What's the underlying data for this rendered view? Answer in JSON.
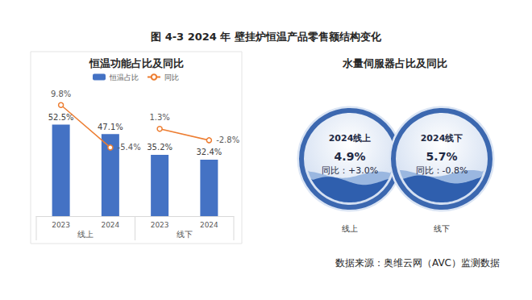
{
  "title": "图 4-3 2024 年 壁挂炉恒温产品零售额结构变化",
  "source": "数据来源：奥维云网（AVC）监测数据",
  "chart_data": [
    {
      "type": "bar",
      "title": "恒温功能占比及同比",
      "categories": [
        "2023",
        "2024",
        "2023",
        "2024"
      ],
      "groups": [
        "线上",
        "线上",
        "线下",
        "线下"
      ],
      "series": [
        {
          "name": "恒温占比",
          "type": "bar",
          "color": "#4472c4",
          "values": [
            52.5,
            47.1,
            35.2,
            32.4
          ],
          "value_labels": [
            "52.5%",
            "47.1%",
            "35.2%",
            "32.4%"
          ]
        },
        {
          "name": "同比",
          "type": "line",
          "axis": "y2",
          "color": "#ed7d31",
          "marker": "circle",
          "line_style": "solid",
          "values": [
            9.8,
            -5.4,
            1.3,
            -2.8
          ],
          "value_labels": [
            "9.8%",
            "-5.4%",
            "1.3%",
            "-2.8%"
          ]
        }
      ],
      "ylim": [
        0,
        80
      ],
      "yticks": [
        0,
        20,
        40,
        60,
        80
      ],
      "y2lim": [
        -30,
        20
      ],
      "y2ticks": [
        -30,
        -20,
        -10,
        0,
        10,
        20
      ],
      "data_labels": true,
      "tick_labels": "x",
      "grid": false,
      "legend": "top"
    },
    {
      "type": "liquid",
      "title": "水量伺服器占比及同比",
      "items": [
        {
          "label": "2024线上",
          "value": 4.9,
          "value_label": "4.9%",
          "change_label": "同比：+3.0%",
          "caption": "线上"
        },
        {
          "label": "2024线下",
          "value": 5.7,
          "value_label": "5.7%",
          "change_label": "同比：-0.8%",
          "caption": "线下"
        }
      ]
    }
  ]
}
